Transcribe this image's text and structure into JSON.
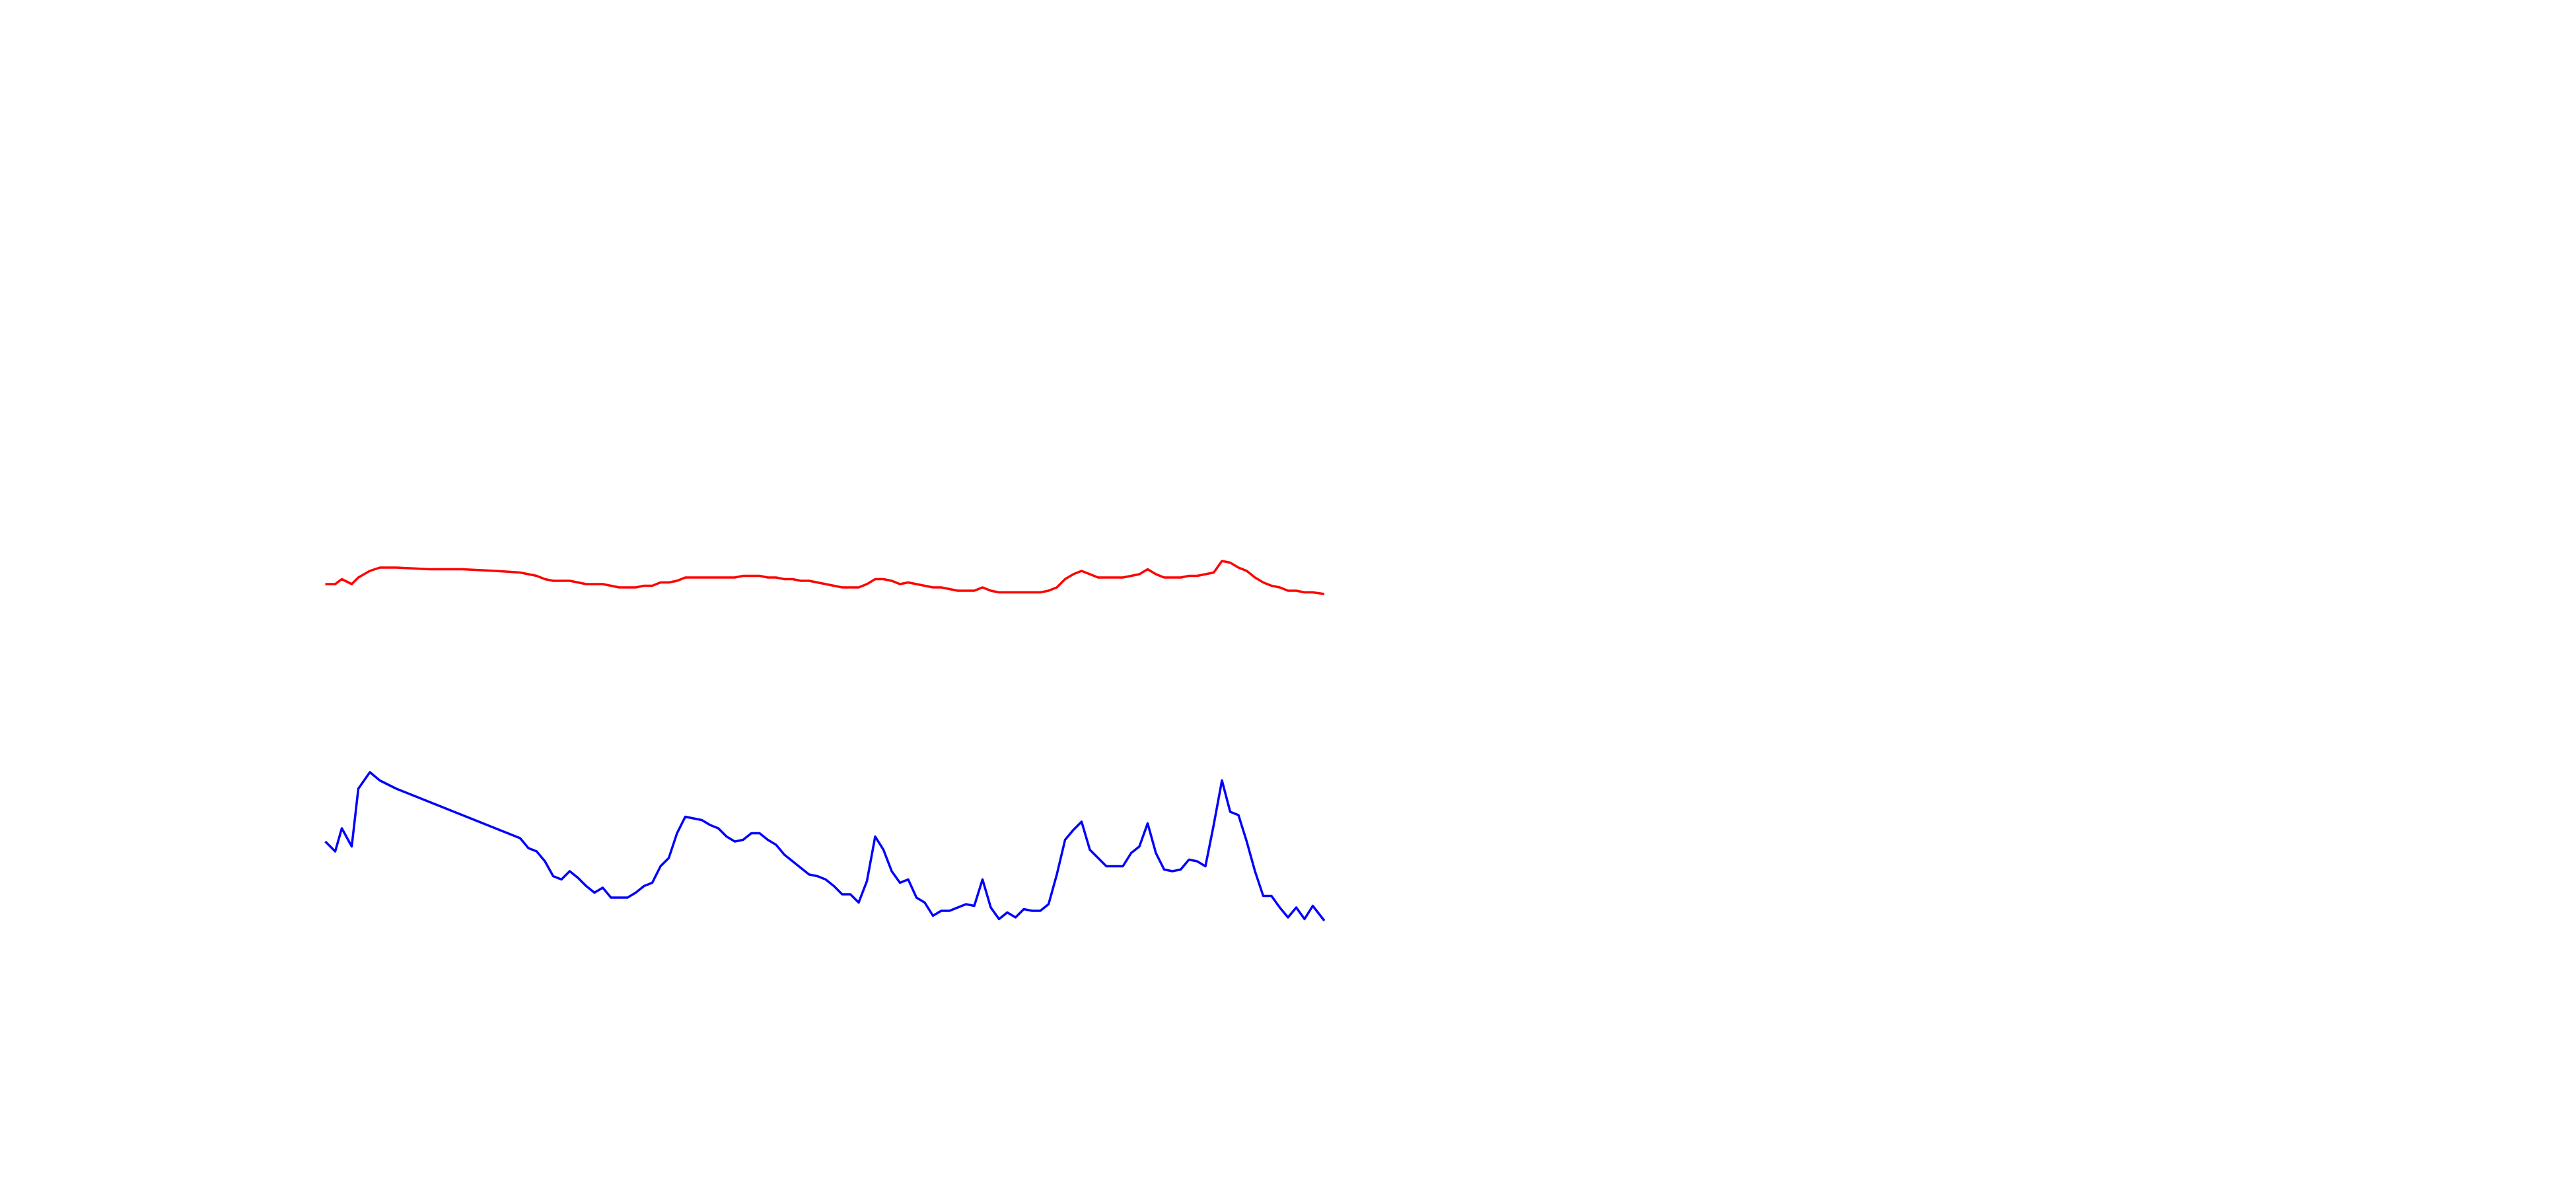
{
  "chart_data": {
    "type": "line",
    "x": [
      197,
      203,
      207,
      213,
      217,
      224,
      230,
      240,
      260,
      280,
      300,
      315,
      320,
      325,
      330,
      335,
      340,
      345,
      350,
      355,
      360,
      365,
      370,
      375,
      380,
      385,
      390,
      395,
      400,
      405,
      410,
      415,
      420,
      425,
      430,
      435,
      440,
      445,
      450,
      455,
      460,
      465,
      470,
      475,
      480,
      485,
      490,
      495,
      500,
      505,
      510,
      515,
      520,
      525,
      530,
      535,
      540,
      545,
      550,
      555,
      560,
      565,
      570,
      575,
      580,
      585,
      590,
      595,
      600,
      605,
      610,
      615,
      620,
      625,
      630,
      635,
      640,
      645,
      650,
      655,
      660,
      665,
      670,
      675,
      680,
      685,
      690,
      695,
      700,
      705,
      710,
      715,
      720,
      725,
      730,
      735,
      740,
      745,
      750,
      755,
      760,
      765,
      770,
      775,
      780,
      785,
      790,
      795,
      802
    ],
    "xlim": [
      0,
      1560
    ],
    "ylim": [
      0,
      720
    ],
    "series": [
      {
        "color": "#ff0000",
        "values": [
          366,
          366,
          369,
          366,
          370,
          374,
          376,
          376,
          375,
          375,
          374,
          373,
          372,
          371,
          369,
          368,
          368,
          368,
          367,
          366,
          366,
          366,
          365,
          364,
          364,
          364,
          365,
          365,
          367,
          367,
          368,
          370,
          370,
          370,
          370,
          370,
          370,
          370,
          371,
          371,
          371,
          370,
          370,
          369,
          369,
          368,
          368,
          367,
          366,
          365,
          364,
          364,
          364,
          366,
          369,
          369,
          368,
          366,
          367,
          366,
          365,
          364,
          364,
          363,
          362,
          362,
          362,
          364,
          362,
          361,
          361,
          361,
          361,
          361,
          361,
          362,
          364,
          369,
          372,
          374,
          372,
          370,
          370,
          370,
          370,
          371,
          372,
          375,
          372,
          370,
          370,
          370,
          371,
          371,
          372,
          373,
          380,
          379,
          376,
          374,
          370,
          367,
          365,
          364,
          362,
          362,
          361,
          361,
          360
        ]
      },
      {
        "color": "#0000ff",
        "values": [
          210,
          204,
          218,
          207,
          242,
          252,
          247,
          242,
          234,
          226,
          218,
          212,
          206,
          204,
          198,
          189,
          187,
          192,
          188,
          183,
          179,
          182,
          176,
          176,
          176,
          179,
          183,
          185,
          195,
          200,
          215,
          225,
          224,
          223,
          220,
          218,
          213,
          210,
          211,
          215,
          215,
          211,
          208,
          202,
          198,
          194,
          190,
          189,
          187,
          183,
          178,
          178,
          173,
          186,
          213,
          205,
          192,
          185,
          187,
          176,
          173,
          165,
          168,
          168,
          170,
          172,
          171,
          187,
          170,
          163,
          167,
          164,
          169,
          168,
          168,
          172,
          190,
          211,
          217,
          222,
          205,
          200,
          195,
          195,
          195,
          203,
          207,
          221,
          203,
          193,
          192,
          193,
          199,
          198,
          195,
          220,
          247,
          228,
          226,
          210,
          192,
          177,
          177,
          170,
          164,
          170,
          163,
          171,
          162
        ]
      }
    ]
  }
}
